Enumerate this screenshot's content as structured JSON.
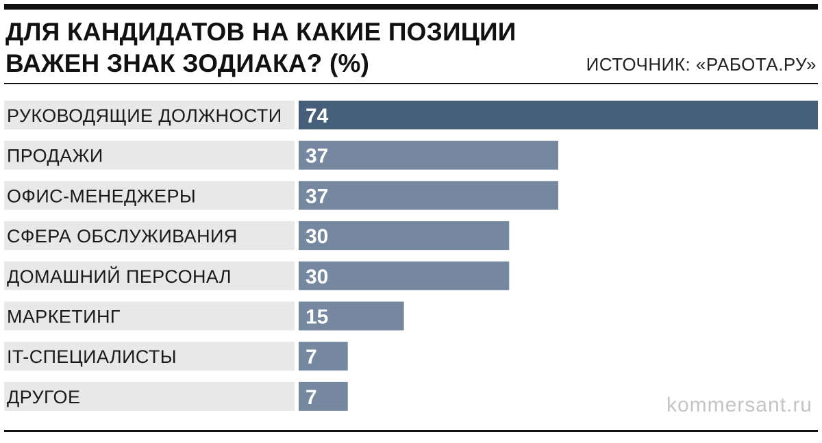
{
  "header": {
    "title": "ДЛЯ КАНДИДАТОВ НА КАКИЕ ПОЗИЦИИ ВАЖЕН ЗНАК ЗОДИАКА? (%)",
    "source": "ИСТОЧНИК: «РАБОТА.РУ»"
  },
  "watermark": "kommersant.ru",
  "colors": {
    "label_band": "#e8e8e8",
    "highlight_bar": "#455f7b",
    "bar": "#7688a0",
    "value_text": "#ffffff"
  },
  "chart_data": {
    "type": "bar",
    "orientation": "horizontal",
    "title": "ДЛЯ КАНДИДАТОВ НА КАКИЕ ПОЗИЦИИ ВАЖЕН ЗНАК ЗОДИАКА? (%)",
    "categories": [
      "РУКОВОДЯЩИЕ ДОЛЖНОСТИ",
      "ПРОДАЖИ",
      "ОФИС-МЕНЕДЖЕРЫ",
      "СФЕРА ОБСЛУЖИВАНИЯ",
      "ДОМАШНИЙ ПЕРСОНАЛ",
      "МАРКЕТИНГ",
      "IT-СПЕЦИАЛИСТЫ",
      "ДРУГОЕ"
    ],
    "values": [
      74,
      37,
      37,
      30,
      30,
      15,
      7,
      7
    ],
    "value_labels": [
      "74",
      "37",
      "37",
      "30",
      "30",
      "15",
      "7",
      "7"
    ],
    "highlight_index": 0,
    "xlim": [
      0,
      74
    ],
    "grid": false,
    "legend": "none"
  }
}
